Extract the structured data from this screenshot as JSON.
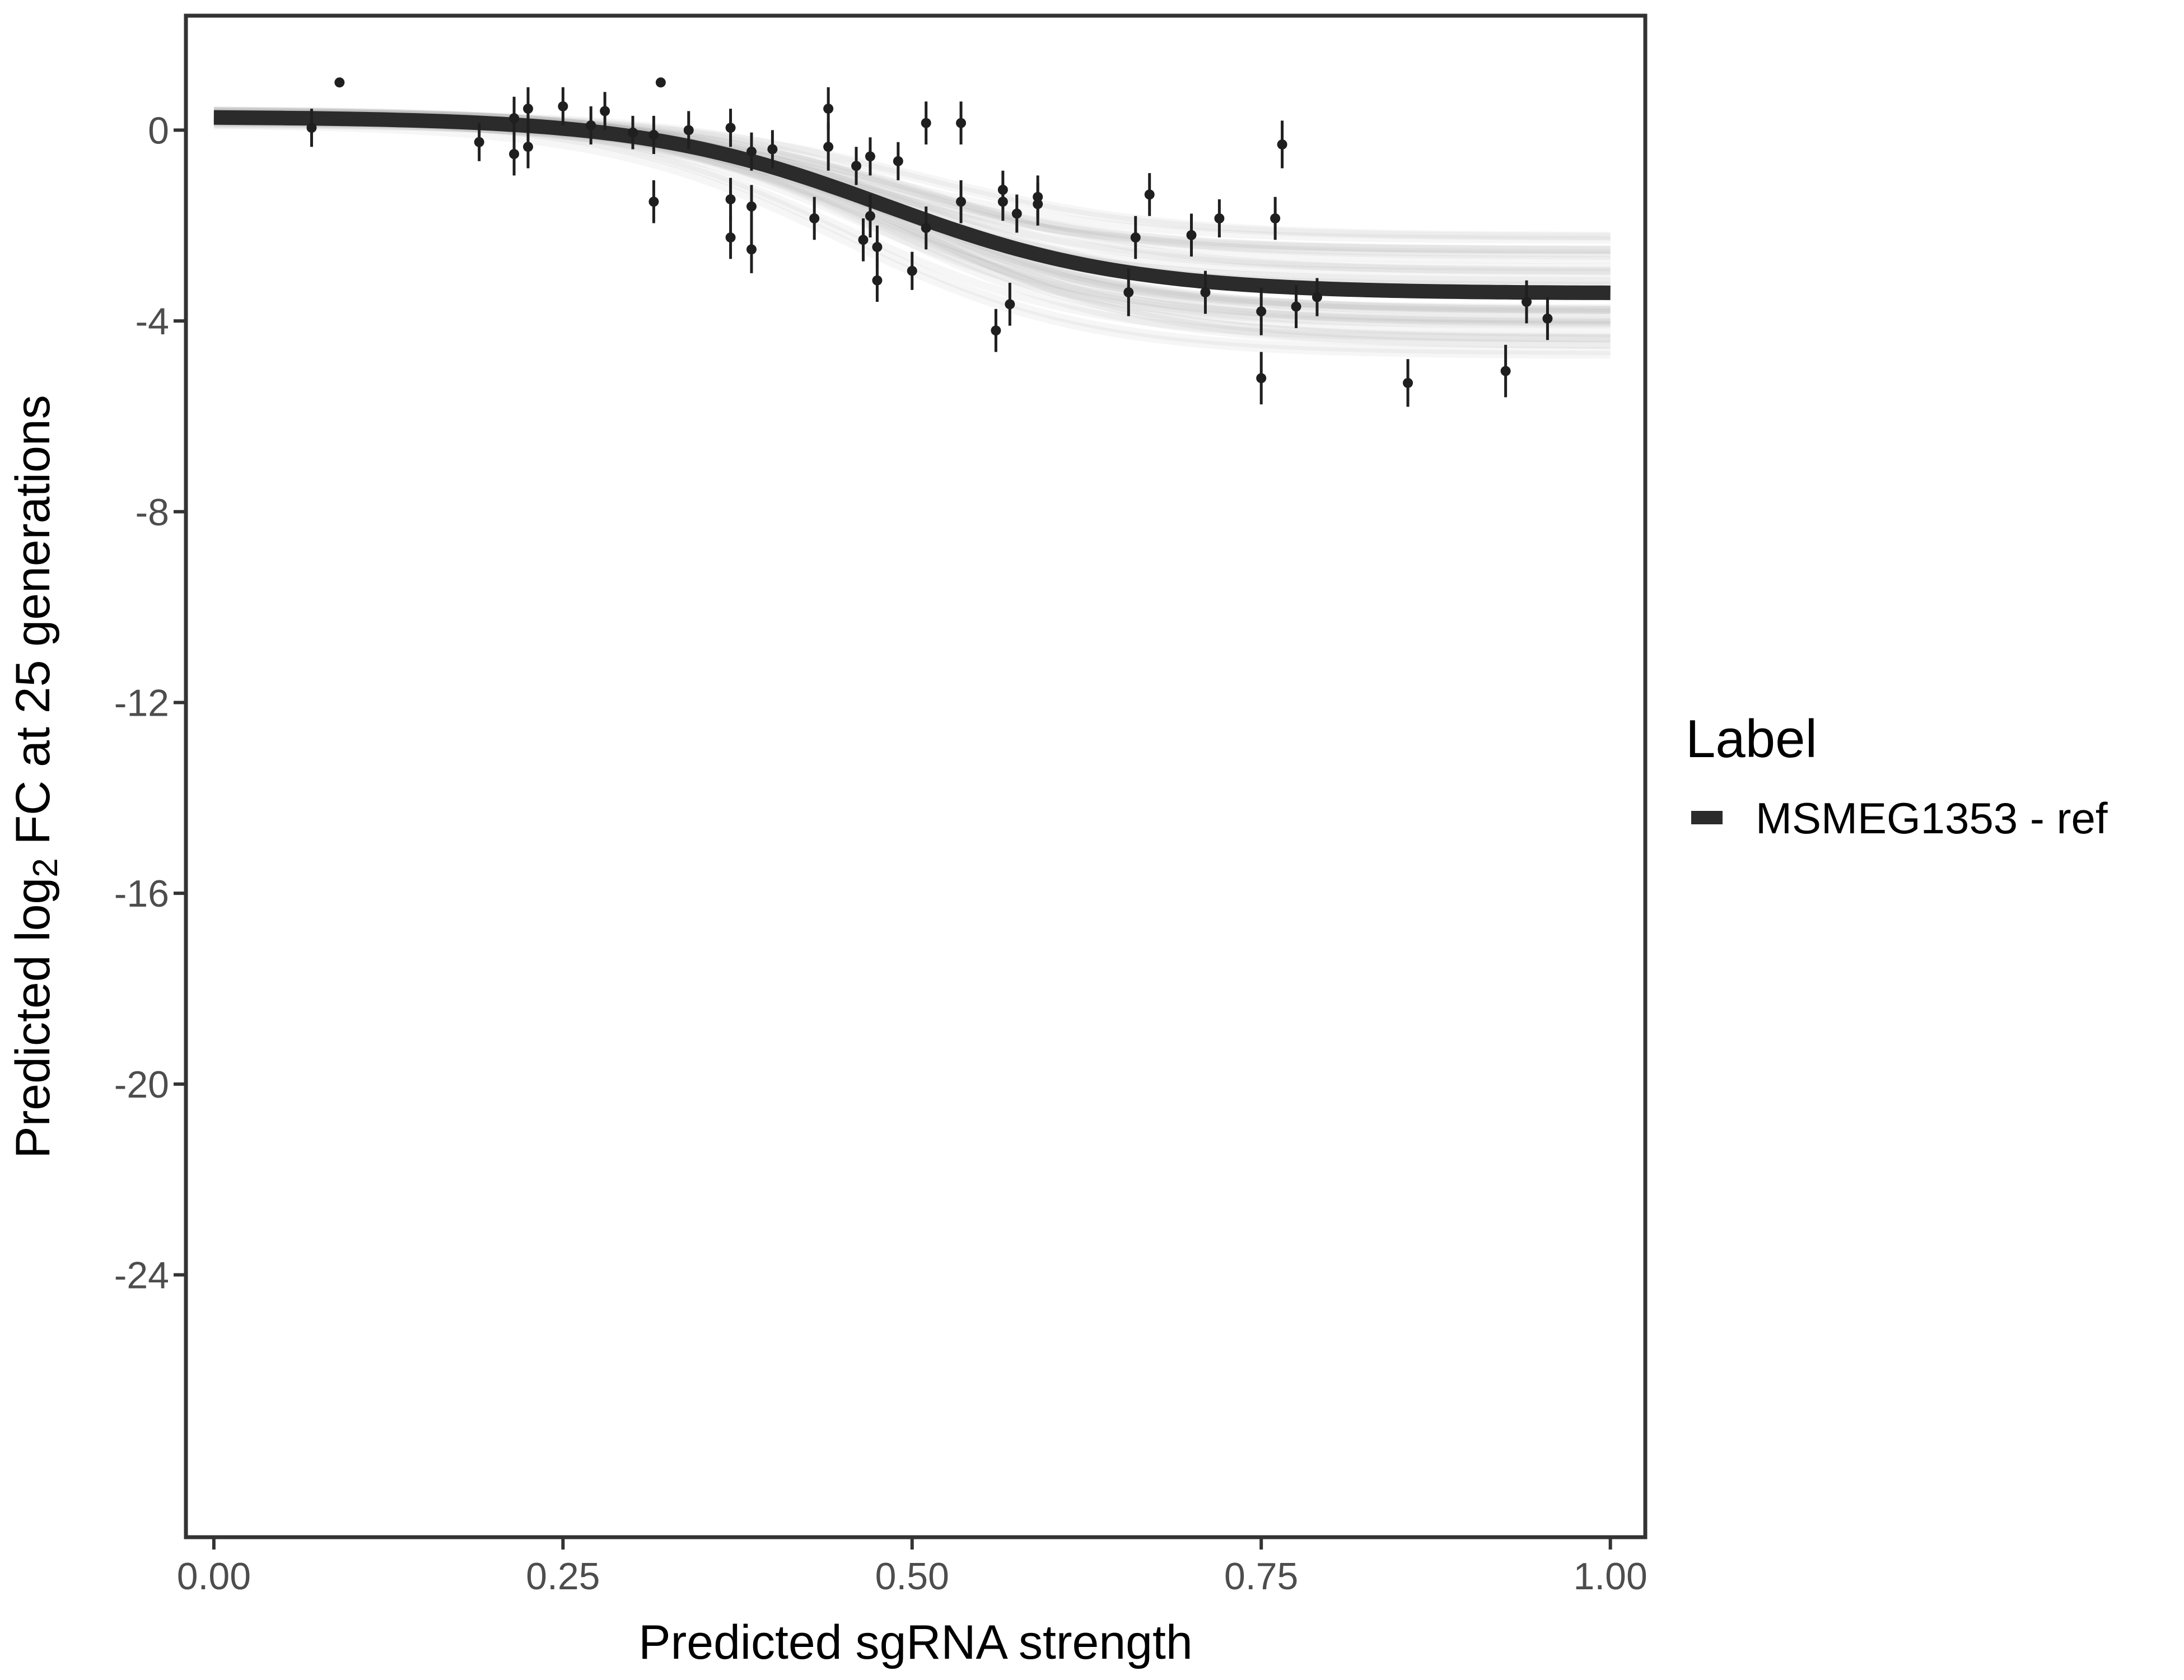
{
  "chart_data": {
    "type": "scatter",
    "title": "",
    "xlabel": "Predicted sgRNA strength",
    "ylabel": {
      "prefix": "Predicted  log",
      "subscript": "2",
      "suffix": " FC at 25 generations"
    },
    "xlim": [
      -0.02,
      1.025
    ],
    "ylim": [
      -29.5,
      2.4
    ],
    "x_ticks": [
      0,
      0.25,
      0.5,
      0.75,
      1
    ],
    "x_tick_labels": [
      "0.00",
      "0.25",
      "0.50",
      "0.75",
      "1.00"
    ],
    "y_ticks": [
      0,
      -4,
      -8,
      -12,
      -16,
      -20,
      -24
    ],
    "y_tick_labels": [
      "0",
      "-4",
      "-8",
      "-12",
      "-16",
      "-20",
      "-24"
    ],
    "grid": false,
    "legend": {
      "title": "Label",
      "position": "right",
      "entries": [
        {
          "label": "MSMEG1353 - ref",
          "color": "#2b2b2b"
        }
      ]
    },
    "fit_curve": {
      "name": "MSMEG1353 - ref",
      "model": "logistic",
      "upper": 0.28,
      "lower": -3.42,
      "midpoint": 0.48,
      "slope": 11.5,
      "x_range": [
        0.0,
        1.0
      ],
      "color": "#2b2b2b",
      "band_color": "#9e9e9e"
    },
    "points": [
      {
        "x": 0.07,
        "y": 0.05,
        "err": 0.4
      },
      {
        "x": 0.09,
        "y": 1.0,
        "err": 0
      },
      {
        "x": 0.19,
        "y": -0.25,
        "err": 0.4
      },
      {
        "x": 0.215,
        "y": 0.25,
        "err": 0.45
      },
      {
        "x": 0.215,
        "y": -0.5,
        "err": 0.45
      },
      {
        "x": 0.225,
        "y": 0.45,
        "err": 0.45
      },
      {
        "x": 0.225,
        "y": -0.35,
        "err": 0.45
      },
      {
        "x": 0.25,
        "y": 0.5,
        "err": 0.4
      },
      {
        "x": 0.27,
        "y": 0.1,
        "err": 0.4
      },
      {
        "x": 0.28,
        "y": 0.4,
        "err": 0.4
      },
      {
        "x": 0.3,
        "y": -0.05,
        "err": 0.35
      },
      {
        "x": 0.315,
        "y": -0.1,
        "err": 0.4
      },
      {
        "x": 0.315,
        "y": -1.5,
        "err": 0.45
      },
      {
        "x": 0.32,
        "y": 1.0,
        "err": 0
      },
      {
        "x": 0.34,
        "y": 0.0,
        "err": 0.4
      },
      {
        "x": 0.37,
        "y": 0.05,
        "err": 0.4
      },
      {
        "x": 0.37,
        "y": -1.45,
        "err": 0.45
      },
      {
        "x": 0.37,
        "y": -2.25,
        "err": 0.45
      },
      {
        "x": 0.385,
        "y": -0.45,
        "err": 0.4
      },
      {
        "x": 0.385,
        "y": -1.6,
        "err": 0.45
      },
      {
        "x": 0.385,
        "y": -2.5,
        "err": 0.5
      },
      {
        "x": 0.4,
        "y": -0.4,
        "err": 0.4
      },
      {
        "x": 0.43,
        "y": -1.85,
        "err": 0.45
      },
      {
        "x": 0.44,
        "y": 0.45,
        "err": 0.45
      },
      {
        "x": 0.44,
        "y": -0.35,
        "err": 0.5
      },
      {
        "x": 0.46,
        "y": -0.75,
        "err": 0.4
      },
      {
        "x": 0.465,
        "y": -2.3,
        "err": 0.45
      },
      {
        "x": 0.47,
        "y": -0.55,
        "err": 0.4
      },
      {
        "x": 0.47,
        "y": -1.8,
        "err": 0.45
      },
      {
        "x": 0.475,
        "y": -2.45,
        "err": 0.45
      },
      {
        "x": 0.475,
        "y": -3.15,
        "err": 0.45
      },
      {
        "x": 0.49,
        "y": -0.65,
        "err": 0.4
      },
      {
        "x": 0.5,
        "y": -2.95,
        "err": 0.4
      },
      {
        "x": 0.51,
        "y": 0.15,
        "err": 0.45
      },
      {
        "x": 0.51,
        "y": -2.05,
        "err": 0.45
      },
      {
        "x": 0.535,
        "y": 0.15,
        "err": 0.45
      },
      {
        "x": 0.535,
        "y": -1.5,
        "err": 0.45
      },
      {
        "x": 0.56,
        "y": -4.2,
        "err": 0.45
      },
      {
        "x": 0.565,
        "y": -1.25,
        "err": 0.4
      },
      {
        "x": 0.565,
        "y": -1.5,
        "err": 0.4
      },
      {
        "x": 0.57,
        "y": -3.65,
        "err": 0.45
      },
      {
        "x": 0.575,
        "y": -1.75,
        "err": 0.4
      },
      {
        "x": 0.59,
        "y": -1.55,
        "err": 0.45
      },
      {
        "x": 0.59,
        "y": -1.4,
        "err": 0.45
      },
      {
        "x": 0.655,
        "y": -3.4,
        "err": 0.5
      },
      {
        "x": 0.66,
        "y": -2.25,
        "err": 0.45
      },
      {
        "x": 0.67,
        "y": -1.35,
        "err": 0.45
      },
      {
        "x": 0.7,
        "y": -2.2,
        "err": 0.45
      },
      {
        "x": 0.71,
        "y": -3.4,
        "err": 0.45
      },
      {
        "x": 0.72,
        "y": -1.85,
        "err": 0.4
      },
      {
        "x": 0.75,
        "y": -3.8,
        "err": 0.5
      },
      {
        "x": 0.75,
        "y": -5.2,
        "err": 0.55
      },
      {
        "x": 0.76,
        "y": -1.85,
        "err": 0.45
      },
      {
        "x": 0.765,
        "y": -0.3,
        "err": 0.5
      },
      {
        "x": 0.775,
        "y": -3.7,
        "err": 0.45
      },
      {
        "x": 0.79,
        "y": -3.5,
        "err": 0.4
      },
      {
        "x": 0.855,
        "y": -5.3,
        "err": 0.5
      },
      {
        "x": 0.925,
        "y": -5.05,
        "err": 0.55
      },
      {
        "x": 0.94,
        "y": -3.6,
        "err": 0.45
      },
      {
        "x": 0.955,
        "y": -3.95,
        "err": 0.45
      }
    ]
  }
}
